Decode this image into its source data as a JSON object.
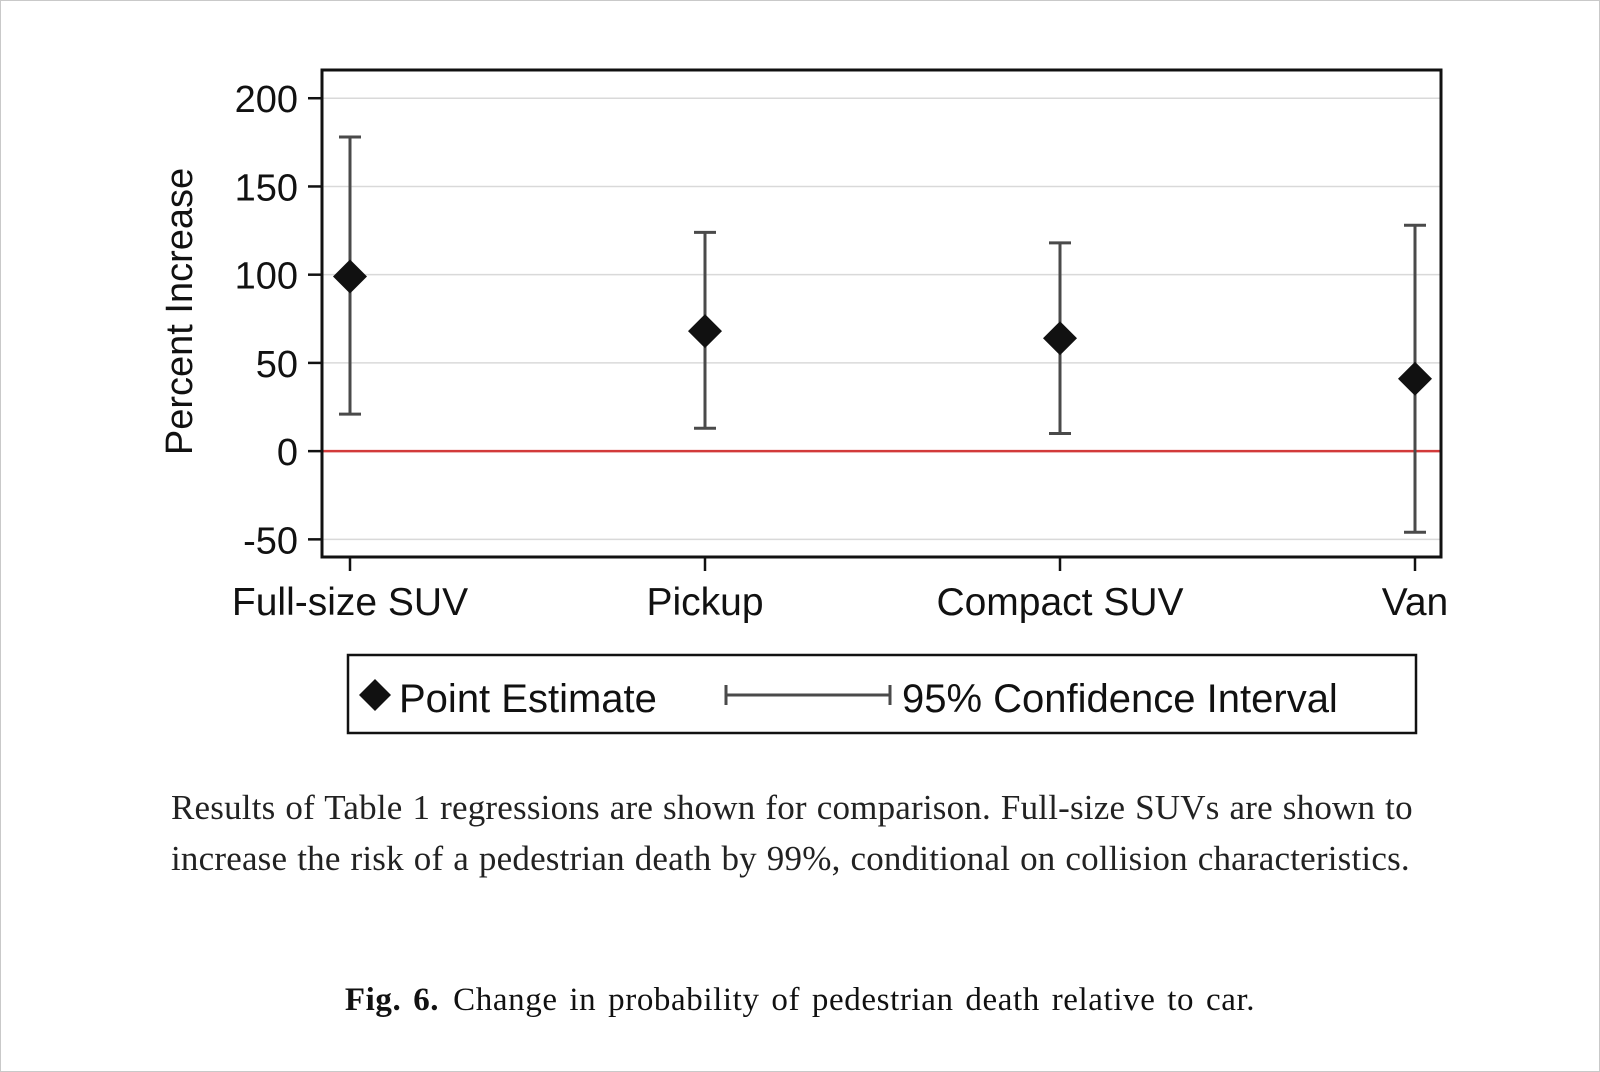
{
  "chart_data": {
    "type": "scatter",
    "ylabel": "Percent Increase",
    "xlabel": "",
    "categories": [
      "Full-size SUV",
      "Pickup",
      "Compact SUV",
      "Van"
    ],
    "point_estimate": [
      99,
      68,
      64,
      41
    ],
    "ci_lower": [
      21,
      13,
      10,
      -46
    ],
    "ci_upper": [
      178,
      124,
      118,
      128
    ],
    "ylim": [
      -60,
      216
    ],
    "yticks": [
      200,
      150,
      100,
      50,
      0,
      -50
    ],
    "reference_line": {
      "y": 0,
      "color": "#d23a3a"
    },
    "grid": "horizontal",
    "legend": {
      "placement": "bottom",
      "items": [
        "Point Estimate",
        "95% Confidence Interval"
      ]
    },
    "colors": {
      "marker": "#111111",
      "errorbar": "#4a4a4a",
      "grid": "#d9d9d9"
    }
  },
  "caption": "Results of Table 1 regressions are shown for comparison. Full-size SUVs are shown to increase the risk of a pedestrian death by 99%, conditional on collision characteristics.",
  "figure": {
    "label": "Fig. 6.",
    "title": "Change in probability of pedestrian death relative to car."
  }
}
